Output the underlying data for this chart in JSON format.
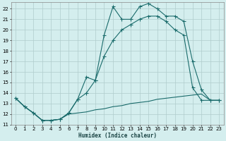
{
  "xlabel": "Humidex (Indice chaleur)",
  "bg_color": "#d4eeee",
  "grid_color": "#b0cccc",
  "line_color": "#1a6b6b",
  "xlim": [
    -0.5,
    23.5
  ],
  "ylim": [
    11,
    22.6
  ],
  "yticks": [
    11,
    12,
    13,
    14,
    15,
    16,
    17,
    18,
    19,
    20,
    21,
    22
  ],
  "xticks": [
    0,
    1,
    2,
    3,
    4,
    5,
    6,
    7,
    8,
    9,
    10,
    11,
    12,
    13,
    14,
    15,
    16,
    17,
    18,
    19,
    20,
    21,
    22,
    23
  ],
  "series1_x": [
    0,
    1,
    2,
    3,
    4,
    5,
    6,
    7,
    8,
    9,
    10,
    11,
    12,
    13,
    14,
    15,
    16,
    17,
    18,
    19,
    20,
    21,
    22,
    23
  ],
  "series1_y": [
    13.5,
    12.7,
    12.1,
    11.4,
    11.4,
    11.5,
    12.1,
    13.4,
    15.5,
    15.2,
    19.5,
    22.2,
    21.0,
    21.0,
    22.2,
    22.5,
    22.0,
    21.3,
    21.3,
    20.8,
    17.0,
    14.3,
    13.3,
    13.3
  ],
  "series2_x": [
    0,
    1,
    2,
    3,
    4,
    5,
    6,
    7,
    8,
    9,
    10,
    11,
    12,
    13,
    14,
    15,
    16,
    17,
    18,
    19,
    20,
    21,
    22,
    23
  ],
  "series2_y": [
    13.5,
    12.7,
    12.1,
    11.4,
    11.4,
    11.5,
    12.0,
    12.1,
    12.2,
    12.4,
    12.5,
    12.7,
    12.8,
    13.0,
    13.1,
    13.2,
    13.4,
    13.5,
    13.6,
    13.7,
    13.8,
    13.9,
    13.3,
    13.3
  ],
  "series3_x": [
    0,
    1,
    2,
    3,
    4,
    5,
    6,
    7,
    8,
    9,
    10,
    11,
    12,
    13,
    14,
    15,
    16,
    17,
    18,
    19,
    20,
    21,
    22,
    23
  ],
  "series3_y": [
    13.5,
    12.7,
    12.1,
    11.4,
    11.4,
    11.5,
    12.1,
    13.4,
    14.0,
    15.2,
    17.5,
    19.0,
    20.0,
    20.5,
    21.0,
    21.3,
    21.3,
    20.8,
    20.0,
    19.5,
    14.5,
    13.3,
    13.3,
    13.3
  ]
}
